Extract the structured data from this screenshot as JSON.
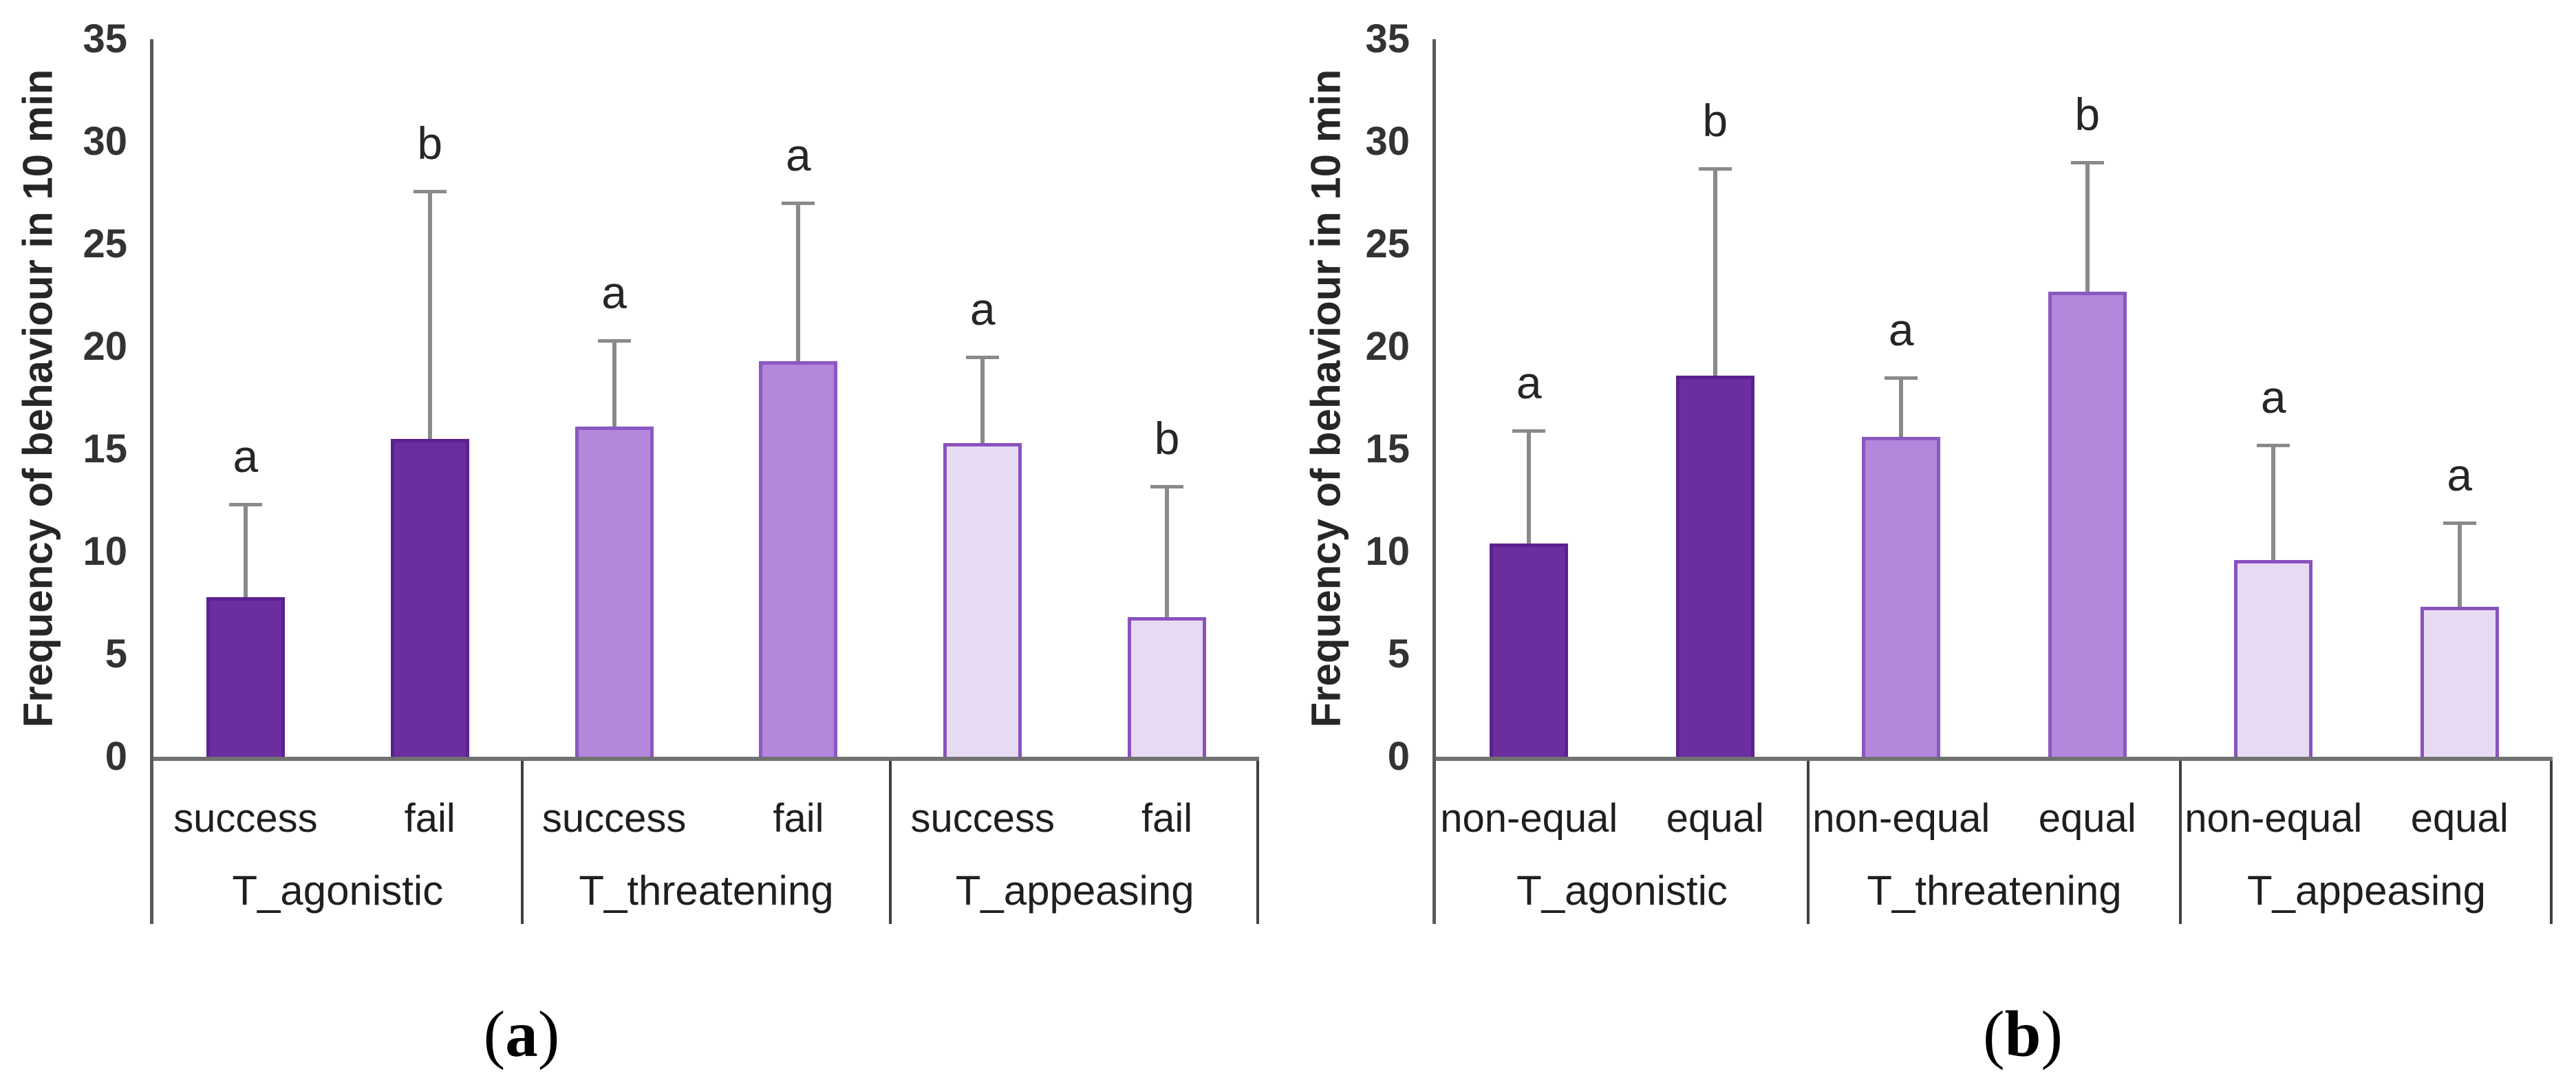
{
  "figure": {
    "background": "#ffffff"
  },
  "colors": {
    "bar_dark_fill": "#6c2e9f",
    "bar_dark_border": "#5b2191",
    "bar_medium_fill": "#b287dc",
    "bar_medium_border": "#8b57c0",
    "bar_light_fill": "#e7dbf4",
    "bar_light_border": "#8a52bd",
    "error_bar": "#8a8a8a",
    "axis_line": "#595959",
    "baseline": "#717171",
    "table_border": "#3f3f3f",
    "text": "#262626"
  },
  "chart_data": {
    "type": "bar",
    "ylabel": "Frequency of behaviour in 10 min",
    "ylim": [
      0,
      35
    ],
    "yticks": [
      0,
      5,
      10,
      15,
      20,
      25,
      30,
      35
    ],
    "grid": false,
    "legend": "none",
    "error_bars": "upper only",
    "panels": [
      {
        "caption_letter": "a",
        "groups": [
          {
            "label": "T_agonistic",
            "shade": "dark",
            "bars": [
              {
                "label": "success",
                "value": 7.8,
                "error_top": 12.3,
                "sig": "a"
              },
              {
                "label": "fail",
                "value": 15.5,
                "error_top": 27.6,
                "sig": "b"
              }
            ]
          },
          {
            "label": "T_threatening",
            "shade": "medium",
            "bars": [
              {
                "label": "success",
                "value": 16.1,
                "error_top": 20.3,
                "sig": "a"
              },
              {
                "label": "fail",
                "value": 19.3,
                "error_top": 27.0,
                "sig": "a"
              }
            ]
          },
          {
            "label": "T_appeasing",
            "shade": "light",
            "bars": [
              {
                "label": "success",
                "value": 15.3,
                "error_top": 19.5,
                "sig": "a"
              },
              {
                "label": "fail",
                "value": 6.8,
                "error_top": 13.2,
                "sig": "b"
              }
            ]
          }
        ]
      },
      {
        "caption_letter": "b",
        "groups": [
          {
            "label": "T_agonistic",
            "shade": "dark",
            "bars": [
              {
                "label": "non-equal",
                "value": 10.4,
                "error_top": 15.9,
                "sig": "a"
              },
              {
                "label": "equal",
                "value": 18.6,
                "error_top": 28.7,
                "sig": "b"
              }
            ]
          },
          {
            "label": "T_threatening",
            "shade": "medium",
            "bars": [
              {
                "label": "non-equal",
                "value": 15.6,
                "error_top": 18.5,
                "sig": "a"
              },
              {
                "label": "equal",
                "value": 22.7,
                "error_top": 29.0,
                "sig": "b"
              }
            ]
          },
          {
            "label": "T_appeasing",
            "shade": "light",
            "bars": [
              {
                "label": "non-equal",
                "value": 9.6,
                "error_top": 15.2,
                "sig": "a"
              },
              {
                "label": "equal",
                "value": 7.3,
                "error_top": 11.4,
                "sig": "a"
              }
            ]
          }
        ]
      }
    ]
  }
}
